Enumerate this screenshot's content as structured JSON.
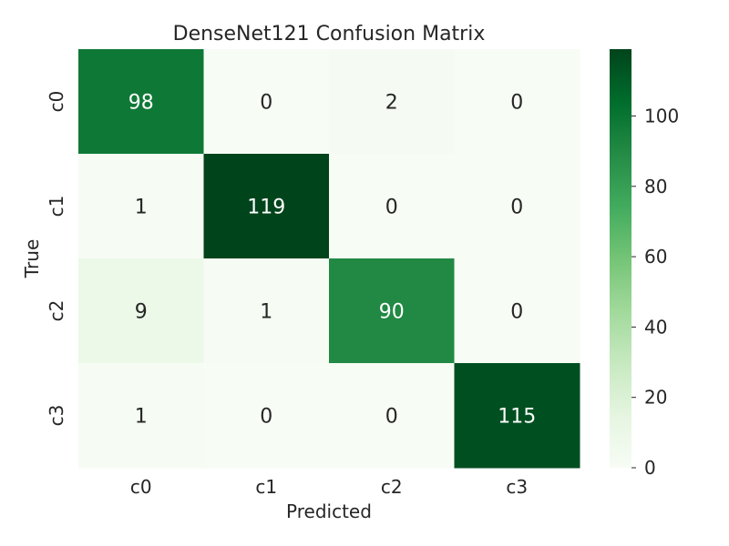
{
  "chart_data": {
    "type": "heatmap",
    "title": "DenseNet121 Confusion Matrix",
    "xlabel": "Predicted",
    "ylabel": "True",
    "x_categories": [
      "c0",
      "c1",
      "c2",
      "c3"
    ],
    "y_categories": [
      "c0",
      "c1",
      "c2",
      "c3"
    ],
    "values": [
      [
        98,
        0,
        2,
        0
      ],
      [
        1,
        119,
        0,
        0
      ],
      [
        9,
        1,
        90,
        0
      ],
      [
        1,
        0,
        0,
        115
      ]
    ],
    "colormap": "Greens",
    "color_min": "#f7fcf5",
    "color_max": "#00441b",
    "colorbar": {
      "range": [
        0,
        119
      ],
      "ticks": [
        0,
        20,
        40,
        60,
        80,
        100
      ],
      "tick_labels": [
        "0",
        "20",
        "40",
        "60",
        "80",
        "100"
      ]
    },
    "grid": false
  }
}
